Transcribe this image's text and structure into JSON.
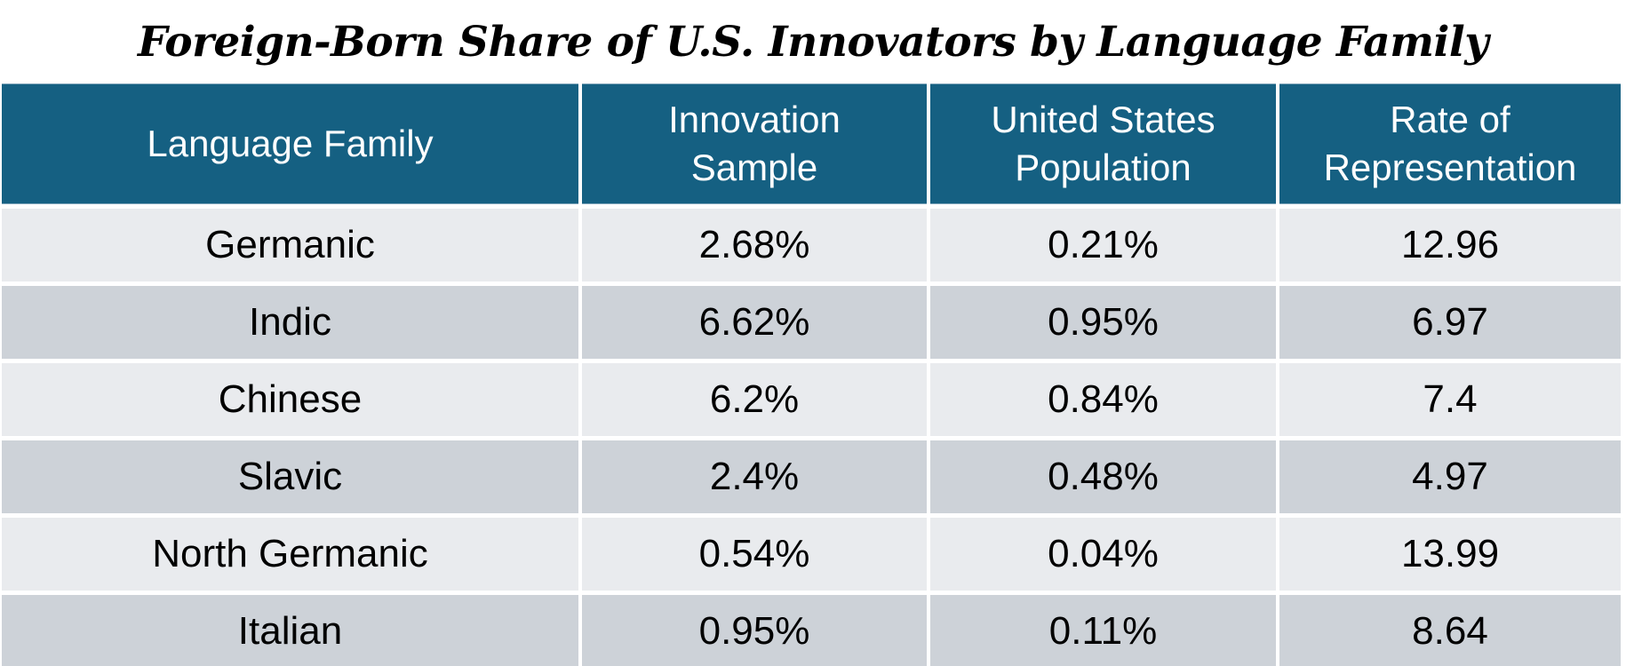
{
  "title": "Foreign-Born Share of U.S. Innovators by Language Family",
  "table": {
    "columns": [
      {
        "label": "Language Family"
      },
      {
        "label": "Innovation\nSample"
      },
      {
        "label": "United States\nPopulation"
      },
      {
        "label": "Rate of\nRepresentation"
      }
    ],
    "rows": [
      [
        "Germanic",
        "2.68%",
        "0.21%",
        "12.96"
      ],
      [
        "Indic",
        "6.62%",
        "0.95%",
        "6.97"
      ],
      [
        "Chinese",
        "6.2%",
        "0.84%",
        "7.4"
      ],
      [
        "Slavic",
        "2.4%",
        "0.48%",
        "4.97"
      ],
      [
        "North Germanic",
        "0.54%",
        "0.04%",
        "13.99"
      ],
      [
        "Italian",
        "0.95%",
        "0.11%",
        "8.64"
      ]
    ]
  },
  "colors": {
    "header_bg": "#156082",
    "header_text": "#FFFFFF",
    "row_band_light": "#E9EBEE",
    "row_band_dark": "#CDD2D8",
    "divider": "#FFFFFF",
    "body_text": "#000000",
    "title_text": "#000000"
  },
  "chart_data": {
    "type": "table",
    "title": "Foreign-Born Share of U.S. Innovators by Language Family",
    "columns": [
      "Language Family",
      "Innovation Sample",
      "United States Population",
      "Rate of Representation"
    ],
    "rows": [
      {
        "language_family": "Germanic",
        "innovation_sample_pct": 2.68,
        "us_population_pct": 0.21,
        "rate_of_representation": 12.96
      },
      {
        "language_family": "Indic",
        "innovation_sample_pct": 6.62,
        "us_population_pct": 0.95,
        "rate_of_representation": 6.97
      },
      {
        "language_family": "Chinese",
        "innovation_sample_pct": 6.2,
        "us_population_pct": 0.84,
        "rate_of_representation": 7.4
      },
      {
        "language_family": "Slavic",
        "innovation_sample_pct": 2.4,
        "us_population_pct": 0.48,
        "rate_of_representation": 4.97
      },
      {
        "language_family": "North Germanic",
        "innovation_sample_pct": 0.54,
        "us_population_pct": 0.04,
        "rate_of_representation": 13.99
      },
      {
        "language_family": "Italian",
        "innovation_sample_pct": 0.95,
        "us_population_pct": 0.11,
        "rate_of_representation": 8.64
      }
    ],
    "layout_hints": {
      "header_style": "teal filled, white text",
      "banding": "alternating light/dark gray rows",
      "alignment": "all cells centered"
    }
  }
}
